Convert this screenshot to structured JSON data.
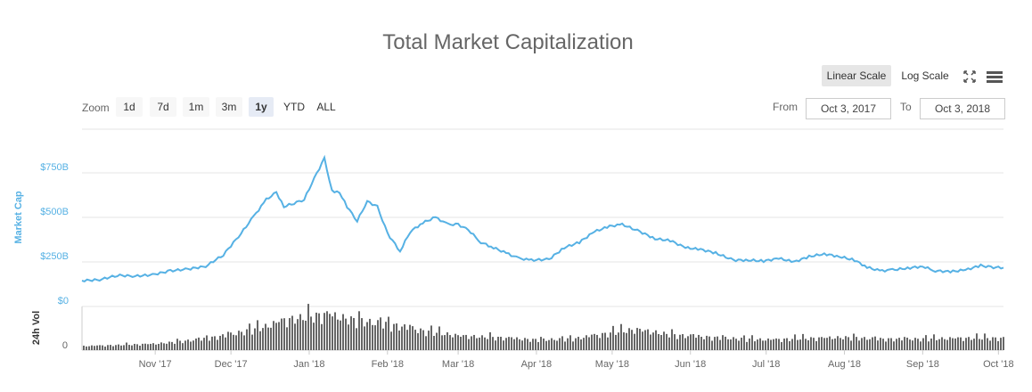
{
  "title": "Total Market Capitalization",
  "scale": {
    "linear": "Linear Scale",
    "log": "Log Scale"
  },
  "icons": {
    "fullscreen": "fullscreen-icon",
    "menu": "menu-icon"
  },
  "zoom": {
    "label": "Zoom",
    "buttons": [
      "1d",
      "7d",
      "1m",
      "3m",
      "1y",
      "YTD",
      "ALL"
    ],
    "selected": "1y"
  },
  "range": {
    "from_label": "From",
    "from_value": "Oct 3, 2017",
    "to_label": "To",
    "to_value": "Oct 3, 2018"
  },
  "colors": {
    "line": "#56b1e4",
    "volume": "#666666",
    "grid": "#e6e6e6",
    "axis_label": "#56b1e4"
  },
  "chart_data": [
    {
      "type": "line",
      "ylabel": "Market Cap",
      "ylim": [
        0,
        900
      ],
      "y_unit": "B USD",
      "yticks": [
        "$0",
        "$250B",
        "$500B",
        "$750B"
      ],
      "ytick_values": [
        0,
        250,
        500,
        750
      ],
      "xticks": [
        "Nov '17",
        "Dec '17",
        "Jan '18",
        "Feb '18",
        "Mar '18",
        "Apr '18",
        "May '18",
        "Jun '18",
        "Jul '18",
        "Aug '18",
        "Sep '18",
        "Oct '18"
      ],
      "xtick_dates": [
        "2017-11-01",
        "2017-12-01",
        "2018-01-01",
        "2018-02-01",
        "2018-03-01",
        "2018-04-01",
        "2018-05-01",
        "2018-06-01",
        "2018-07-01",
        "2018-08-01",
        "2018-09-01",
        "2018-10-01"
      ],
      "x_range": [
        "2017-10-03",
        "2018-10-03"
      ],
      "grid": true,
      "series": [
        {
          "x": [
            "2017-10-03",
            "2017-10-10",
            "2017-10-17",
            "2017-10-24",
            "2017-10-31",
            "2017-11-07",
            "2017-11-14",
            "2017-11-21",
            "2017-11-28",
            "2017-12-05",
            "2017-12-10",
            "2017-12-15",
            "2017-12-19",
            "2017-12-22",
            "2017-12-26",
            "2017-12-30",
            "2018-01-03",
            "2018-01-07",
            "2018-01-10",
            "2018-01-13",
            "2018-01-16",
            "2018-01-20",
            "2018-01-24",
            "2018-01-28",
            "2018-02-01",
            "2018-02-06",
            "2018-02-10",
            "2018-02-15",
            "2018-02-20",
            "2018-02-25",
            "2018-03-01",
            "2018-03-05",
            "2018-03-10",
            "2018-03-15",
            "2018-03-20",
            "2018-03-25",
            "2018-03-30",
            "2018-04-06",
            "2018-04-12",
            "2018-04-18",
            "2018-04-24",
            "2018-04-30",
            "2018-05-05",
            "2018-05-12",
            "2018-05-18",
            "2018-05-24",
            "2018-05-30",
            "2018-06-05",
            "2018-06-11",
            "2018-06-18",
            "2018-06-24",
            "2018-06-30",
            "2018-07-06",
            "2018-07-12",
            "2018-07-18",
            "2018-07-24",
            "2018-07-30",
            "2018-08-05",
            "2018-08-10",
            "2018-08-15",
            "2018-08-20",
            "2018-08-26",
            "2018-09-01",
            "2018-09-06",
            "2018-09-12",
            "2018-09-18",
            "2018-09-24",
            "2018-09-28",
            "2018-10-03"
          ],
          "y": [
            145,
            150,
            175,
            170,
            178,
            200,
            210,
            225,
            290,
            410,
            505,
            600,
            640,
            560,
            580,
            600,
            720,
            830,
            650,
            640,
            560,
            480,
            590,
            560,
            410,
            310,
            420,
            470,
            500,
            460,
            460,
            430,
            360,
            330,
            300,
            270,
            260,
            265,
            330,
            360,
            420,
            450,
            460,
            420,
            380,
            370,
            330,
            320,
            300,
            260,
            260,
            255,
            270,
            250,
            280,
            295,
            280,
            260,
            220,
            200,
            205,
            215,
            225,
            200,
            195,
            205,
            230,
            220,
            218
          ]
        }
      ]
    },
    {
      "type": "bar",
      "ylabel": "24h Vol",
      "yticks": [
        "0"
      ],
      "profile_x": [
        "2017-10-03",
        "2017-11-01",
        "2017-11-20",
        "2017-12-01",
        "2017-12-15",
        "2017-12-22",
        "2018-01-01",
        "2018-01-07",
        "2018-01-15",
        "2018-01-25",
        "2018-02-06",
        "2018-02-15",
        "2018-03-01",
        "2018-03-15",
        "2018-04-01",
        "2018-04-15",
        "2018-05-01",
        "2018-05-10",
        "2018-05-25",
        "2018-06-15",
        "2018-07-01",
        "2018-07-20",
        "2018-08-01",
        "2018-08-15",
        "2018-09-01",
        "2018-09-15",
        "2018-10-03"
      ],
      "profile_y": [
        5,
        8,
        14,
        20,
        30,
        38,
        42,
        45,
        40,
        35,
        30,
        24,
        18,
        16,
        13,
        14,
        22,
        26,
        19,
        15,
        13,
        15,
        16,
        14,
        14,
        15,
        15
      ]
    }
  ]
}
